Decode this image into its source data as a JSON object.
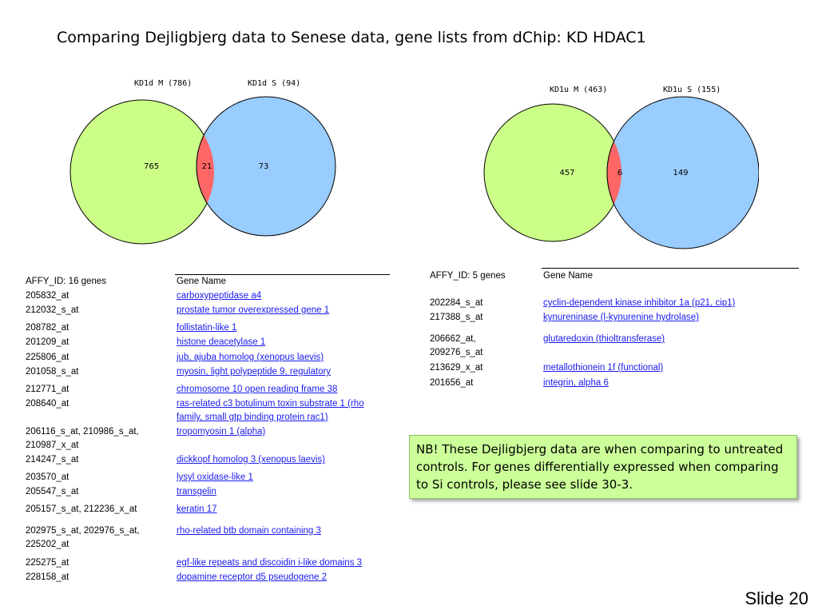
{
  "title": "Comparing Dejligbjerg data to Senese data, gene lists from dChip: KD HDAC1",
  "venn_left": {
    "set_a": "KD1d M (786)",
    "set_b": "KD1d S (94)",
    "only_a": "765",
    "both": "21",
    "only_b": "73"
  },
  "venn_right": {
    "set_a": "KD1u M (463)",
    "set_b": "KD1u S (155)",
    "only_a": "457",
    "both": "6",
    "only_b": "149"
  },
  "colors": {
    "set_a_fill": "#ccff88",
    "set_b_fill": "#99ccff",
    "overlap_fill": "#ff6666"
  },
  "table_left": {
    "header": [
      "AFFY_ID: 16 genes",
      "Gene Name"
    ],
    "rows": [
      [
        "205832_at",
        "carboxypeptidase a4"
      ],
      [
        "212032_s_at",
        "prostate tumor overexpressed gene 1"
      ],
      [
        "208782_at",
        "follistatin-like 1"
      ],
      [
        "201209_at",
        "histone deacetylase 1"
      ],
      [
        "225806_at",
        "jub, ajuba homolog (xenopus laevis)"
      ],
      [
        "201058_s_at",
        "myosin, light polypeptide 9, regulatory"
      ],
      [
        "212771_at",
        "chromosome 10 open reading frame 38"
      ],
      [
        "208640_at",
        "ras-related c3 botulinum toxin substrate 1 (rho family, small gtp binding protein rac1)"
      ],
      [
        "206116_s_at, 210986_s_at, 210987_x_at",
        "tropomyosin 1 (alpha)"
      ],
      [
        "214247_s_at",
        "dickkopf homolog 3 (xenopus laevis)"
      ],
      [
        "203570_at",
        "lysyl oxidase-like 1"
      ],
      [
        "205547_s_at",
        "transgelin"
      ],
      [
        "205157_s_at, 212236_x_at",
        "keratin 17"
      ],
      [
        "202975_s_at, 202976_s_at, 225202_at",
        "rho-related btb domain containing 3"
      ],
      [
        "225275_at",
        "egf-like repeats and discoidin i-like domains 3"
      ],
      [
        "228158_at",
        "dopamine receptor d5 pseudogene 2"
      ]
    ]
  },
  "table_right": {
    "header": [
      "AFFY_ID: 5 genes",
      "Gene Name"
    ],
    "rows": [
      [
        "202284_s_at",
        "cyclin-dependent kinase inhibitor 1a (p21, cip1)"
      ],
      [
        "217388_s_at",
        "kynureninase (l-kynurenine hydrolase)"
      ],
      [
        "206662_at, 209276_s_at",
        "glutaredoxin (thioltransferase)"
      ],
      [
        "213629_x_at",
        "metallothionein 1f (functional)"
      ],
      [
        "201656_at",
        "integrin, alpha 6"
      ]
    ]
  },
  "note": "NB! These Dejligbjerg data are when comparing to untreated controls. For genes differentially expressed when comparing to Si controls, please see slide 30-3.",
  "slide_number": "Slide 20"
}
